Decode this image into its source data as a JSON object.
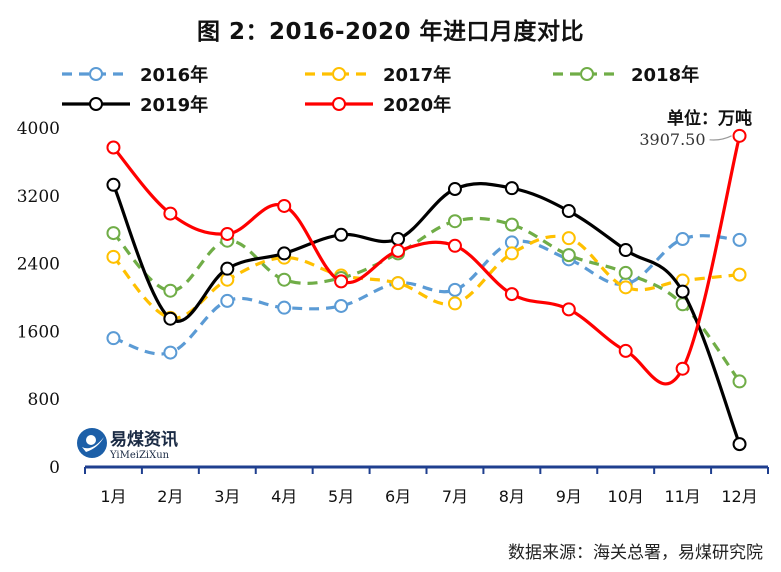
{
  "title": "图 2：2016-2020 年进口月度对比",
  "unit_label": "单位：万吨",
  "source": "数据来源：海关总署，易煤研究院",
  "logo": {
    "name": "易煤资讯",
    "sub": "YiMeiZiXun"
  },
  "callout": "3907.50",
  "colors": {
    "2016年": "#5b9bd5",
    "2017年": "#ffc000",
    "2018年": "#70ad47",
    "2019年": "#000000",
    "2020年": "#ff0000",
    "axis": "#1f3f8f"
  },
  "chart_data": {
    "type": "line",
    "title": "图 2：2016-2020 年进口月度对比",
    "xlabel": "",
    "ylabel": "",
    "categories": [
      "1月",
      "2月",
      "3月",
      "4月",
      "5月",
      "6月",
      "7月",
      "8月",
      "9月",
      "10月",
      "11月",
      "12月"
    ],
    "ylim": [
      0,
      4000
    ],
    "yticks": [
      0,
      800,
      1600,
      2400,
      3200,
      4000
    ],
    "grid": false,
    "legend_position": "top",
    "series": [
      {
        "name": "2016年",
        "style": "dashed",
        "values": [
          1520,
          1350,
          1960,
          1880,
          1900,
          2170,
          2090,
          2650,
          2450,
          2160,
          2690,
          2680
        ]
      },
      {
        "name": "2017年",
        "style": "dashed",
        "values": [
          2480,
          1760,
          2210,
          2470,
          2260,
          2170,
          1930,
          2520,
          2700,
          2120,
          2200,
          2270
        ]
      },
      {
        "name": "2018年",
        "style": "dashed",
        "values": [
          2760,
          2080,
          2670,
          2210,
          2230,
          2520,
          2900,
          2860,
          2500,
          2290,
          1920,
          1010
        ]
      },
      {
        "name": "2019年",
        "style": "solid",
        "values": [
          3330,
          1750,
          2340,
          2520,
          2740,
          2690,
          3280,
          3290,
          3020,
          2560,
          2070,
          270
        ]
      },
      {
        "name": "2020年",
        "style": "solid",
        "values": [
          3770,
          2990,
          2750,
          3080,
          2190,
          2550,
          2610,
          2040,
          1860,
          1370,
          1160,
          3907.5
        ]
      }
    ]
  }
}
